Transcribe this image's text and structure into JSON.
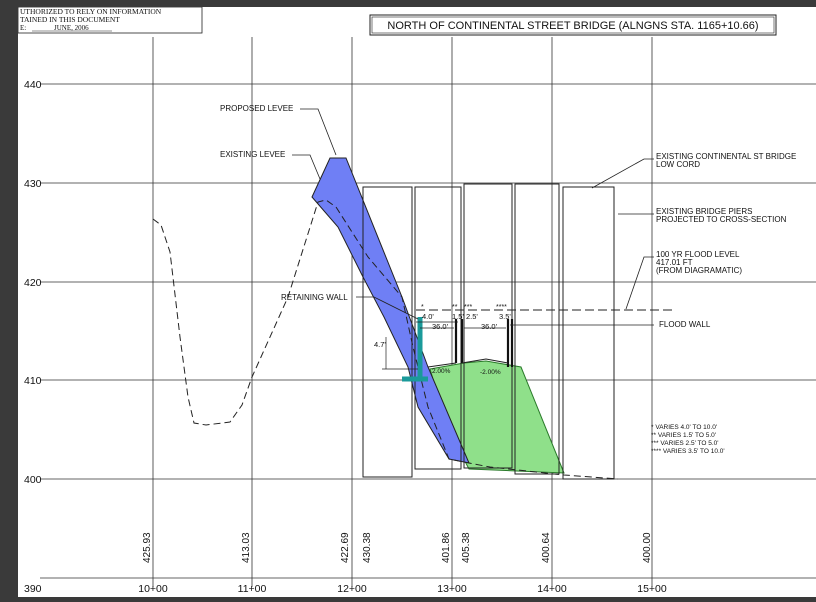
{
  "title_block": {
    "line1": "UTHORIZED TO RELY ON INFORMATION",
    "line2": "TAINED IN THIS DOCUMENT",
    "line3_prefix": "E:",
    "line3_date": "JUNE, 2006"
  },
  "drawing_title": "NORTH OF CONTINENTAL STREET BRIDGE (ALNGNS STA. 1165+10.66)",
  "y_axis_labels": [
    "440",
    "430",
    "420",
    "410",
    "400",
    "390"
  ],
  "x_axis_labels": [
    "10+00",
    "11+00",
    "12+00",
    "13+00",
    "14+00",
    "15+00"
  ],
  "ground_elevations": [
    "425.93",
    "413.03",
    "422.69",
    "430.38",
    "401.86",
    "405.38",
    "400.64",
    "400.00"
  ],
  "callouts": {
    "proposed_levee": "PROPOSED LEVEE",
    "existing_levee": "EXISTING LEVEE",
    "retaining_wall": "RETAINING WALL",
    "bridge_low_cord_1": "EXISTING CONTINENTAL ST BRIDGE",
    "bridge_low_cord_2": "LOW CORD",
    "bridge_piers_1": "EXISTING BRIDGE PIERS",
    "bridge_piers_2": "PROJECTED TO CROSS-SECTION",
    "flood_level_1": "100 YR FLOOD LEVEL",
    "flood_level_2": "417.01 FT",
    "flood_level_3": "(FROM DIAGRAMATIC)",
    "flood_wall": "FLOOD WALL"
  },
  "dimensions": {
    "d_4_0": "4.0'",
    "d_36_a": "36.0'",
    "d_1_5": "1.5'",
    "d_2_5": "2.5'",
    "d_36_b": "36.0'",
    "d_3_5": "3.5'",
    "d_4_7": "4.7'",
    "slope_a": "2.00%",
    "slope_b": "-2.00%"
  },
  "notes": [
    "* VARIES 4.0' TO 10.0'",
    "** VARIES 1.5' TO 5.0'",
    "*** VARIES 2.5' TO 5.0'",
    "**** VARIES 3.5' TO 10.0'"
  ],
  "colors": {
    "proposed_levee_fill": "#6f7ff5",
    "flood_wall_fill": "#8fe08a",
    "retaining_wall": "#1a9a9a"
  }
}
